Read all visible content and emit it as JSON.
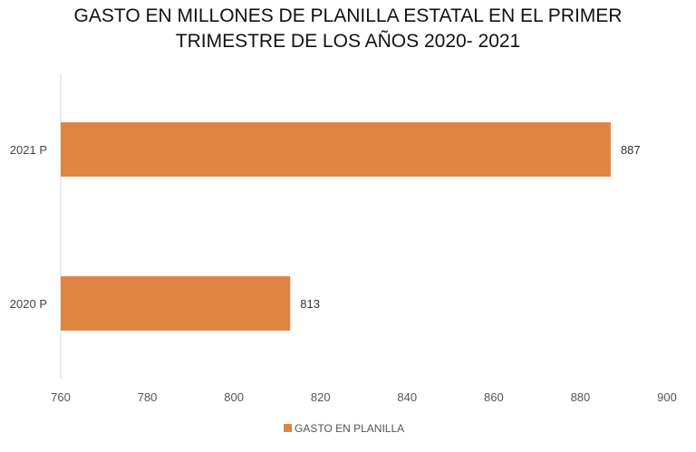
{
  "chart_data": {
    "type": "bar",
    "orientation": "horizontal",
    "title_line1": "GASTO EN MILLONES DE PLANILLA ESTATAL EN EL PRIMER",
    "title_line2": "TRIMESTRE DE LOS AÑOS 2020- 2021",
    "categories": [
      "2021 P",
      "2020 P"
    ],
    "series": [
      {
        "name": "GASTO EN PLANILLA",
        "values": [
          887,
          813
        ],
        "color": "#E08444"
      }
    ],
    "data_labels": [
      "887",
      "813"
    ],
    "xlim": [
      760,
      900
    ],
    "xticks": [
      760,
      780,
      800,
      820,
      840,
      860,
      880,
      900
    ],
    "xtick_labels": [
      "760",
      "780",
      "800",
      "820",
      "840",
      "860",
      "880",
      "900"
    ],
    "grid": false,
    "legend_position": "bottom"
  }
}
